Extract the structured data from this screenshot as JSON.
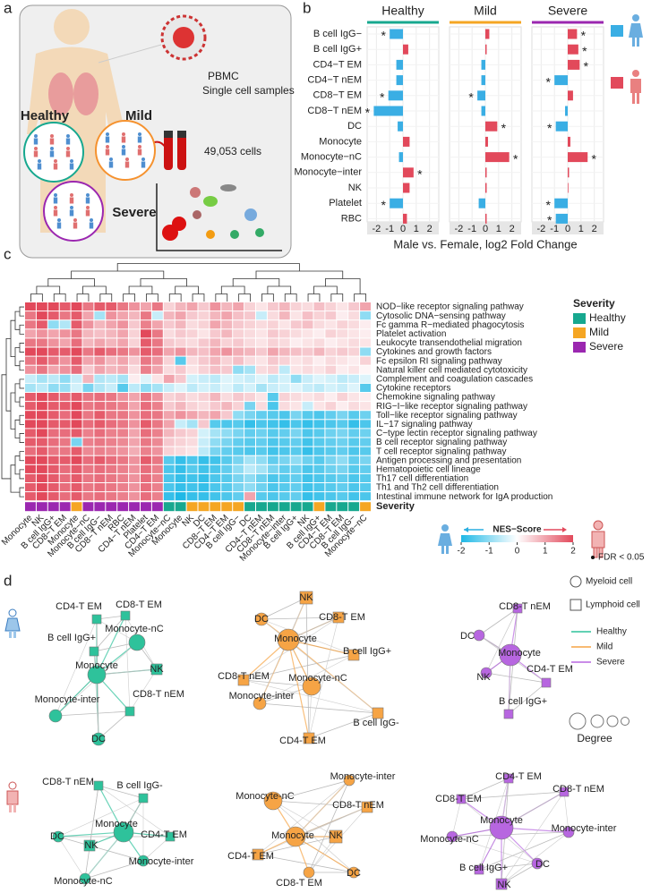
{
  "panel_labels": [
    "a",
    "b",
    "c",
    "d"
  ],
  "schematic": {
    "sample_label": "PBMC",
    "sample_sublabel": "Single cell samples",
    "cell_count": "49,053 cells",
    "groups": [
      {
        "name": "Healthy",
        "color": "#17a88f"
      },
      {
        "name": "Mild",
        "color": "#f5922f"
      },
      {
        "name": "Severe",
        "color": "#9b27b0"
      }
    ]
  },
  "chart_data": [
    {
      "type": "bar",
      "orientation": "horizontal",
      "title": "Healthy",
      "title_color": "#17a88f",
      "categories": [
        "B cell IgG−",
        "B cell IgG+",
        "CD4−T EM",
        "CD4−T nEM",
        "CD8−T EM",
        "CD8−T nEM",
        "DC",
        "Monocyte",
        "Monocyte−nC",
        "Monocyte−inter",
        "NK",
        "Platelet",
        "RBC"
      ],
      "values": [
        -1.0,
        0.4,
        -0.5,
        -0.5,
        -1.1,
        -2.2,
        -0.4,
        0.5,
        -0.3,
        0.8,
        0.5,
        -1.0,
        0.3
      ],
      "significant": [
        true,
        false,
        false,
        false,
        true,
        true,
        false,
        false,
        false,
        true,
        false,
        true,
        false
      ],
      "significant_marker": "*",
      "negative_color": "#3aaee4",
      "positive_color": "#e2495b",
      "xlim": [
        -2.7,
        2.7
      ],
      "xticks": [
        -2,
        -1,
        0,
        1,
        2
      ]
    },
    {
      "type": "bar",
      "orientation": "horizontal",
      "title": "Mild",
      "title_color": "#f5a623",
      "xlabel": "Male vs. Female, log2 Fold Change",
      "values": [
        0.3,
        0.1,
        -0.3,
        -0.3,
        -0.6,
        -0.3,
        0.9,
        0.2,
        1.8,
        0.1,
        0.1,
        -0.5,
        0.1
      ],
      "significant": [
        false,
        false,
        false,
        false,
        true,
        false,
        true,
        false,
        true,
        false,
        false,
        false,
        false
      ],
      "significant_marker": "*",
      "negative_color": "#3aaee4",
      "positive_color": "#e2495b",
      "xlim": [
        -2.7,
        2.7
      ],
      "xticks": [
        -2,
        -1,
        0,
        1,
        2
      ]
    },
    {
      "type": "bar",
      "orientation": "horizontal",
      "title": "Severe",
      "title_color": "#9b27b0",
      "values": [
        0.7,
        0.8,
        0.9,
        -1.0,
        0.4,
        -0.2,
        -0.9,
        0.2,
        1.5,
        0.1,
        0.05,
        -1.0,
        -0.9
      ],
      "significant": [
        true,
        true,
        true,
        true,
        false,
        false,
        true,
        false,
        true,
        false,
        false,
        true,
        true
      ],
      "significant_marker": "*",
      "negative_color": "#3aaee4",
      "positive_color": "#e2495b",
      "xlim": [
        -2.7,
        2.7
      ],
      "xticks": [
        -2,
        -1,
        0,
        1,
        2
      ],
      "legend_colors": [
        "#3aaee4",
        "#e2495b"
      ]
    },
    {
      "type": "heatmap",
      "rows": [
        "NOD−like receptor signaling pathway",
        "Cytosolic DNA−sensing pathway",
        "Fc gamma R−mediated phagocytosis",
        "Platelet activation",
        "Leukocyte transendothelial migration",
        "Cytokines and growth factors",
        "Fc epsilon RI signaling pathway",
        "Natural killer cell mediated cytotoxicity",
        "Complement and coagulation cascades",
        "Cytokine receptors",
        "Chemokine signaling pathway",
        "RIG−I−like receptor signaling pathway",
        "Toll−like receptor signaling pathway",
        "IL−17 signaling pathway",
        "C−type lectin receptor signaling pathway",
        "B cell receptor signaling pathway",
        "T cell receptor signaling pathway",
        "Antigen processing and presentation",
        "Hematopoietic cell lineage",
        "Th17 cell differentiation",
        "Th1 and Th2 cell differentiation",
        "Intestinal immune network for IgA production"
      ],
      "columns": [
        "Monocyte",
        "NK",
        "B cell IgG+",
        "CD8−T EM",
        "Monocyte",
        "Monocyte−nC",
        "B cell IgG−",
        "CD8−T nEM",
        "RBC",
        "CD4−T nEM",
        "Platelet",
        "CD4−T EM",
        "Monocyte−nC",
        "Monocyte",
        "NK",
        "DC",
        "CD8−T EM",
        "CD4−T EM",
        "B cell IgG−",
        "DC",
        "CD4−T nEM",
        "CD8−T nEM",
        "Monocyte−inter",
        "B cell IgG+",
        "NK",
        "B cell IgG+",
        "CD4−T EM",
        "CD8−T EM",
        "B cell IgG−",
        "Monocyte−nC"
      ],
      "column_severity": [
        "Severe",
        "Severe",
        "Severe",
        "Severe",
        "Mild",
        "Severe",
        "Severe",
        "Severe",
        "Severe",
        "Severe",
        "Severe",
        "Severe",
        "Healthy",
        "Healthy",
        "Mild",
        "Mild",
        "Mild",
        "Mild",
        "Mild",
        "Healthy",
        "Healthy",
        "Healthy",
        "Healthy",
        "Healthy",
        "Healthy",
        "Mild",
        "Healthy",
        "Healthy",
        "Healthy",
        "Mild"
      ],
      "values": [
        [
          2,
          2,
          2,
          1.8,
          2,
          1.5,
          1.8,
          1.8,
          1.5,
          1.2,
          1,
          1.5,
          0.5,
          0.8,
          1,
          0.6,
          1.2,
          0.8,
          1,
          0.5,
          0.3,
          0.6,
          0.8,
          0.5,
          0.4,
          0.7,
          0.5,
          0.3,
          0.6,
          1
        ],
        [
          1.5,
          2,
          1.8,
          1.5,
          1.8,
          1,
          -0.8,
          1.2,
          1,
          0.8,
          1.5,
          -0.5,
          0.8,
          1,
          0.6,
          0.5,
          0.8,
          1,
          0.7,
          0.6,
          -0.5,
          0.4,
          0.8,
          0.3,
          0.7,
          0.5,
          0.6,
          0.2,
          0.4,
          -1
        ],
        [
          1.5,
          1.8,
          -1,
          -0.7,
          1.8,
          1.2,
          0.8,
          1,
          1.2,
          0.6,
          1.4,
          1,
          0.6,
          0.8,
          0.4,
          0.5,
          1,
          0.8,
          0.6,
          0.5,
          0.4,
          0.5,
          0.3,
          0.6,
          0.7,
          0.4,
          0.3,
          0.5,
          0.4,
          0.2
        ],
        [
          1,
          1.2,
          1,
          1.2,
          1.5,
          0.8,
          0.7,
          0.8,
          1,
          0.5,
          2,
          1.5,
          0.4,
          0.6,
          0.5,
          0.3,
          0.6,
          0.8,
          0.5,
          0.4,
          0.3,
          0.6,
          0.5,
          0.4,
          0.3,
          0.2,
          0.5,
          0.4,
          0.3,
          0.2
        ],
        [
          1.5,
          1.5,
          1.2,
          1,
          1.6,
          0.8,
          1,
          0.8,
          1,
          0.5,
          1.8,
          1.5,
          0.6,
          0.5,
          0.4,
          0.6,
          0.8,
          0.5,
          0.6,
          0.4,
          0.3,
          0.5,
          0.4,
          0.2,
          0.3,
          0.4,
          0.2,
          0.3,
          0.4,
          0.3
        ],
        [
          2,
          2,
          1.8,
          1.8,
          2,
          1.5,
          1.8,
          1.6,
          1.5,
          1.2,
          1.8,
          1.6,
          1,
          1.2,
          0.8,
          0.7,
          1,
          1.2,
          0.9,
          0.8,
          0.6,
          1,
          0.8,
          0.7,
          0.6,
          0.8,
          0.5,
          0.6,
          0.5,
          -1
        ],
        [
          1.5,
          1.8,
          1.5,
          1.2,
          1.8,
          1,
          1.2,
          0.8,
          1,
          0.6,
          1.5,
          1.2,
          0.5,
          -1.5,
          0.4,
          0.6,
          0.8,
          0.5,
          0.7,
          0.4,
          0.3,
          0.6,
          0.5,
          0.3,
          0.4,
          0.2,
          0.4,
          0.3,
          0.2,
          0.5
        ],
        [
          1.2,
          1.5,
          1,
          1.2,
          1.6,
          0.6,
          1,
          0.8,
          0.9,
          0.4,
          1.4,
          1,
          0.4,
          0.6,
          0.3,
          0.5,
          0.7,
          0.6,
          -1,
          -0.8,
          0.4,
          0.5,
          -0.6,
          0.3,
          0.4,
          0.3,
          0.5,
          0.2,
          0.3,
          0.1
        ],
        [
          -0.5,
          -0.8,
          -0.6,
          -1,
          -0.5,
          0.8,
          -0.7,
          -0.6,
          -0.8,
          0.2,
          -0.3,
          0.3,
          1,
          0.6,
          -0.4,
          -0.5,
          -0.6,
          -0.3,
          -0.4,
          -0.5,
          -0.3,
          -0.6,
          -0.4,
          -1,
          -0.5,
          -0.3,
          -0.4,
          -0.6,
          -0.5,
          -0.3
        ],
        [
          -0.8,
          -0.6,
          -1,
          -0.9,
          -0.4,
          -1.2,
          -0.7,
          -0.5,
          -1.5,
          -0.6,
          -1,
          -0.8,
          -0.5,
          -0.3,
          -0.6,
          -0.4,
          -0.5,
          -0.3,
          -0.6,
          -0.4,
          -0.8,
          -0.5,
          -0.4,
          -0.3,
          -0.5,
          -0.6,
          -0.4,
          -0.5,
          -0.3,
          -1.5
        ],
        [
          1.8,
          2,
          1.8,
          1.6,
          1.8,
          1.5,
          1.6,
          1.5,
          1.2,
          1,
          1.5,
          1.2,
          0.5,
          0.6,
          0.4,
          0.5,
          0.8,
          0.4,
          0.6,
          0.5,
          0.3,
          -1.5,
          0.5,
          0.4,
          0.3,
          0.4,
          0.2,
          0.5,
          0.3,
          0.2
        ],
        [
          1.8,
          2,
          1.8,
          1.8,
          2,
          1.5,
          1.6,
          1.5,
          1.4,
          1,
          1.6,
          1.4,
          0.6,
          0.8,
          0.5,
          0.4,
          0.6,
          0.8,
          0.5,
          -1.2,
          0.4,
          -1.6,
          0.4,
          0.3,
          -0.5,
          0.3,
          0.5,
          0.2,
          0.4,
          0.3
        ],
        [
          2,
          2,
          1.8,
          1.6,
          2,
          1.5,
          1.8,
          1.5,
          1.5,
          1.2,
          1.6,
          1.5,
          1,
          1.2,
          1,
          0.8,
          1,
          0.6,
          -1,
          -1.2,
          -1.4,
          -1.5,
          -1.6,
          -1.2,
          -1.5,
          -1.6,
          -1.4,
          -1.2,
          -1.5,
          -1.3
        ],
        [
          2,
          2,
          1.8,
          1.8,
          2,
          1.6,
          1.8,
          1.6,
          1.5,
          1.2,
          1.8,
          1.5,
          1,
          -0.5,
          -0.8,
          0.6,
          -1.5,
          -1.6,
          -1.5,
          -1.8,
          -1.6,
          -1.7,
          -1.8,
          -1.6,
          -1.8,
          -1.7,
          -1.6,
          -1.5,
          -1.8,
          -1.6
        ],
        [
          1.8,
          2,
          1.6,
          1.6,
          1.8,
          1.4,
          1.6,
          1.4,
          1.4,
          1,
          1.6,
          1.4,
          0.8,
          0.6,
          0.5,
          -0.4,
          -0.8,
          -1,
          -1.2,
          -1.4,
          -1.3,
          -1.5,
          -1.4,
          -1.2,
          -1.6,
          -1.5,
          -1.3,
          -1.2,
          -1.4,
          -1.3
        ],
        [
          1.8,
          1.8,
          1.6,
          1.5,
          -1.2,
          1.4,
          1.5,
          1.4,
          1.3,
          1,
          1.5,
          1.3,
          0.6,
          0.5,
          0.4,
          -0.5,
          -1,
          -1.2,
          -1.4,
          -1.5,
          -1.4,
          -1.6,
          -1.5,
          -1.4,
          -1.7,
          -1.5,
          -1.4,
          -1.3,
          -1.5,
          -1.4
        ],
        [
          1.6,
          1.8,
          1.5,
          1.5,
          1.8,
          1.3,
          1.4,
          1.3,
          1.2,
          0.9,
          1.4,
          1.2,
          0.5,
          0.4,
          0.3,
          -0.6,
          -1.2,
          -1.4,
          -1.5,
          -1.6,
          -1.5,
          -1.7,
          -1.6,
          -1.5,
          -1.8,
          -1.6,
          -1.5,
          -1.4,
          -1.6,
          -1.5
        ],
        [
          2,
          2,
          1.8,
          1.8,
          2,
          1.6,
          1.8,
          1.6,
          1.5,
          1.2,
          1.8,
          1.5,
          -1.5,
          -1.8,
          -1.6,
          -1.8,
          -1.7,
          -1.5,
          -1.2,
          -0.8,
          -1,
          -1.4,
          -1.2,
          -1,
          -1.3,
          -1.5,
          -1.2,
          -1,
          -1.4,
          -1.2
        ],
        [
          2,
          2,
          1.8,
          1.6,
          1.8,
          1.5,
          1.6,
          1.5,
          1.4,
          1.2,
          1.6,
          1.4,
          -1.6,
          -1.8,
          -1.5,
          -1.7,
          -1.6,
          -1.4,
          -1,
          -0.6,
          -0.8,
          -1.2,
          -1.4,
          -1.3,
          -1.6,
          -1.5,
          -1.3,
          -1.2,
          -1.5,
          -1.4
        ],
        [
          1.8,
          2,
          1.8,
          1.6,
          1.8,
          1.5,
          1.6,
          1.5,
          1.4,
          1.2,
          1.6,
          1.4,
          -1.6,
          -1.8,
          -1.7,
          -1.8,
          -1.6,
          -1.5,
          -1.2,
          -1,
          -1.3,
          -1.6,
          -1.5,
          -1.4,
          -1.7,
          -1.6,
          -1.5,
          -1.4,
          -1.6,
          -1.5
        ],
        [
          1.8,
          2,
          1.8,
          1.6,
          1.8,
          1.5,
          1.6,
          1.5,
          1.4,
          1.2,
          1.6,
          1.4,
          -1.6,
          -1.8,
          -1.7,
          -1.8,
          -1.6,
          -1.5,
          -1.2,
          -1,
          -1.3,
          -1.6,
          -1.5,
          -1.4,
          -1.7,
          -1.6,
          -1.5,
          -1.4,
          -1.6,
          -1.5
        ],
        [
          1.8,
          2,
          1.8,
          1.6,
          1.8,
          1.5,
          1.6,
          1.5,
          1.4,
          1.2,
          1.6,
          1.4,
          -1.8,
          -2,
          -1.8,
          -1.8,
          -1.7,
          -1.6,
          -1.4,
          1,
          -1.5,
          -1.6,
          -1.5,
          -1.4,
          -1.8,
          -1.7,
          -1.6,
          -1.5,
          -1.7,
          -1.6
        ]
      ],
      "severity_row_label": "Severity",
      "severity_legend": {
        "title": "Severity",
        "items": [
          {
            "name": "Healthy",
            "color": "#17a88f"
          },
          {
            "name": "Mild",
            "color": "#f5a623"
          },
          {
            "name": "Severe",
            "color": "#9b27b0"
          }
        ]
      },
      "colorbar": {
        "title": "NES−Score",
        "lim": [
          -2,
          2
        ],
        "ticks": [
          -2,
          -1,
          0,
          1,
          2
        ],
        "colors": [
          "#1fb8e6",
          "#ffffff",
          "#e2495b"
        ]
      },
      "fdr_label": "FDR < 0.05"
    }
  ],
  "networks": [
    {
      "color": "#2ec29b",
      "nodes": [
        "CD4-T EM",
        "CD8-T EM",
        "B cell IgG+",
        "Monocyte-nC",
        "NK",
        "Monocyte",
        "Monocyte-inter",
        "CD8-T nEM",
        "DC"
      ]
    },
    {
      "color": "#f6a445",
      "nodes": [
        "NK",
        "DC",
        "CD8-T EM",
        "Monocyte",
        "B cell IgG+",
        "CD8-T nEM",
        "Monocyte-nC",
        "Monocyte-inter",
        "B cell IgG-",
        "CD4-T EM"
      ]
    },
    {
      "color": "#b766e0",
      "nodes": [
        "CD8-T nEM",
        "DC",
        "Monocyte",
        "NK",
        "CD4-T EM",
        "B cell IgG+"
      ]
    },
    {
      "color": "#2ec29b",
      "nodes": [
        "CD8-T nEM",
        "B cell IgG-",
        "Monocyte",
        "CD4-T EM",
        "DC",
        "NK",
        "Monocyte-inter",
        "Monocyte-nC"
      ]
    },
    {
      "color": "#f6a445",
      "nodes": [
        "Monocyte-inter",
        "Monocyte-nC",
        "CD8-T nEM",
        "Monocyte",
        "NK",
        "CD4-T EM",
        "DC",
        "CD8-T EM"
      ]
    },
    {
      "color": "#b766e0",
      "nodes": [
        "CD4-T EM",
        "CD8-T EM",
        "CD8-T nEM",
        "Monocyte",
        "Monocyte-nC",
        "Monocyte-inter",
        "B cell IgG+",
        "DC",
        "NK"
      ]
    }
  ],
  "network_legend": {
    "myeloid": "Myeloid cell",
    "lymphoid": "Lymphoid cell",
    "edges": [
      {
        "name": "Healthy",
        "color": "#2ec29b"
      },
      {
        "name": "Mild",
        "color": "#f6a445"
      },
      {
        "name": "Severe",
        "color": "#b766e0"
      }
    ],
    "degree": "Degree"
  }
}
